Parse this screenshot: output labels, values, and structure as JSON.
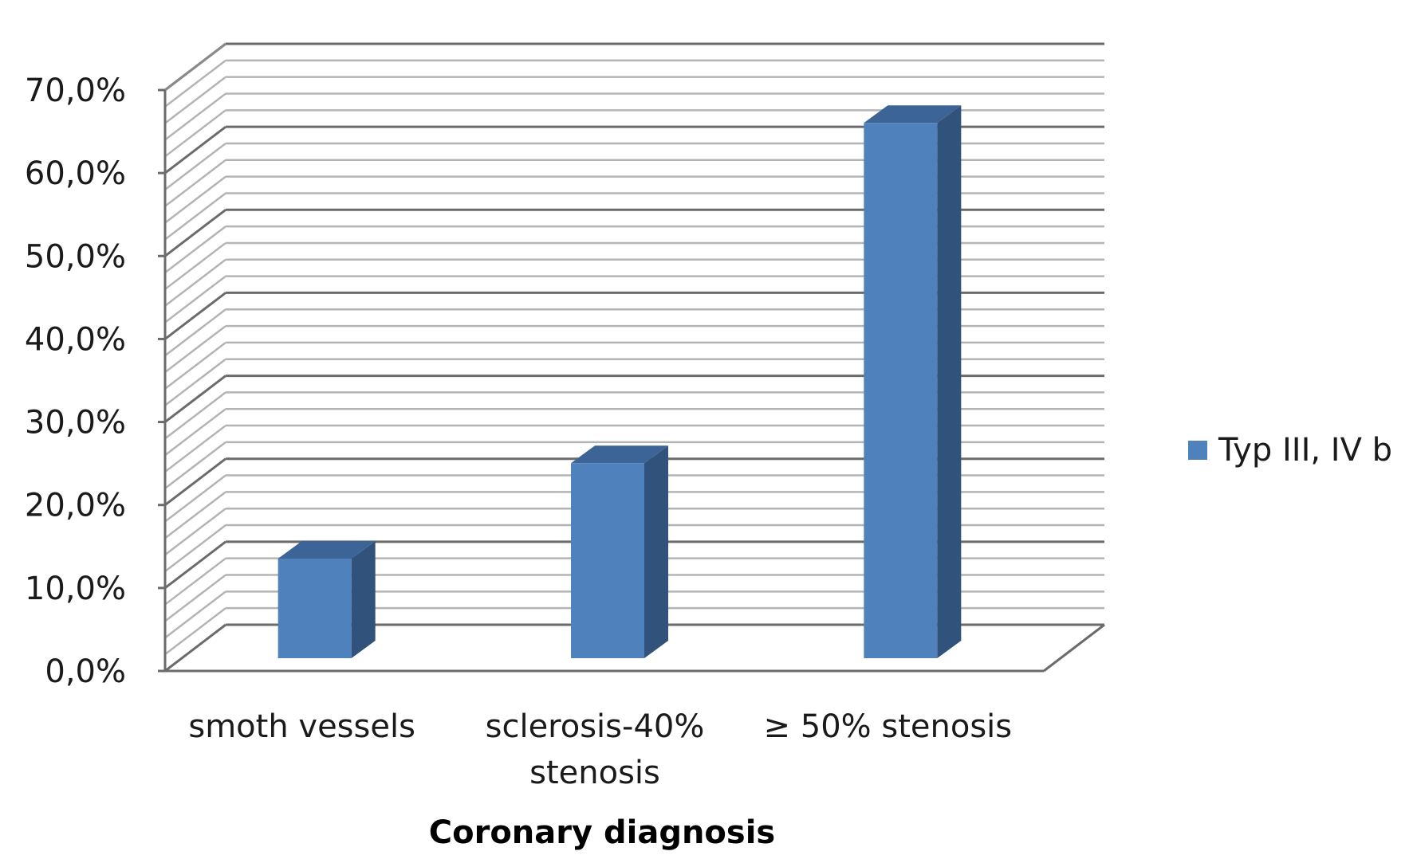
{
  "chart_data": {
    "type": "bar",
    "style": "3d-column",
    "categories": [
      "smoth vessels",
      "sclerosis-40% stenosis",
      "≥ 50% stenosis"
    ],
    "category_lines": [
      [
        "smoth vessels"
      ],
      [
        "sclerosis-40%",
        "stenosis"
      ],
      [
        "≥ 50% stenosis"
      ]
    ],
    "series": [
      {
        "name": "Typ III, IV b",
        "values": [
          12.0,
          23.5,
          64.5
        ],
        "color": "#4F81BD"
      }
    ],
    "xlabel": "Coronary diagnosis",
    "ylabel": "",
    "title": "",
    "ylim": [
      0,
      70
    ],
    "ytick_values": [
      0,
      10,
      20,
      30,
      40,
      50,
      60,
      70
    ],
    "ytick_labels": [
      "0,0%",
      "10,0%",
      "20,0%",
      "30,0%",
      "40,0%",
      "50,0%",
      "60,0%",
      "70,0%"
    ],
    "grid": true,
    "legend": "right"
  }
}
